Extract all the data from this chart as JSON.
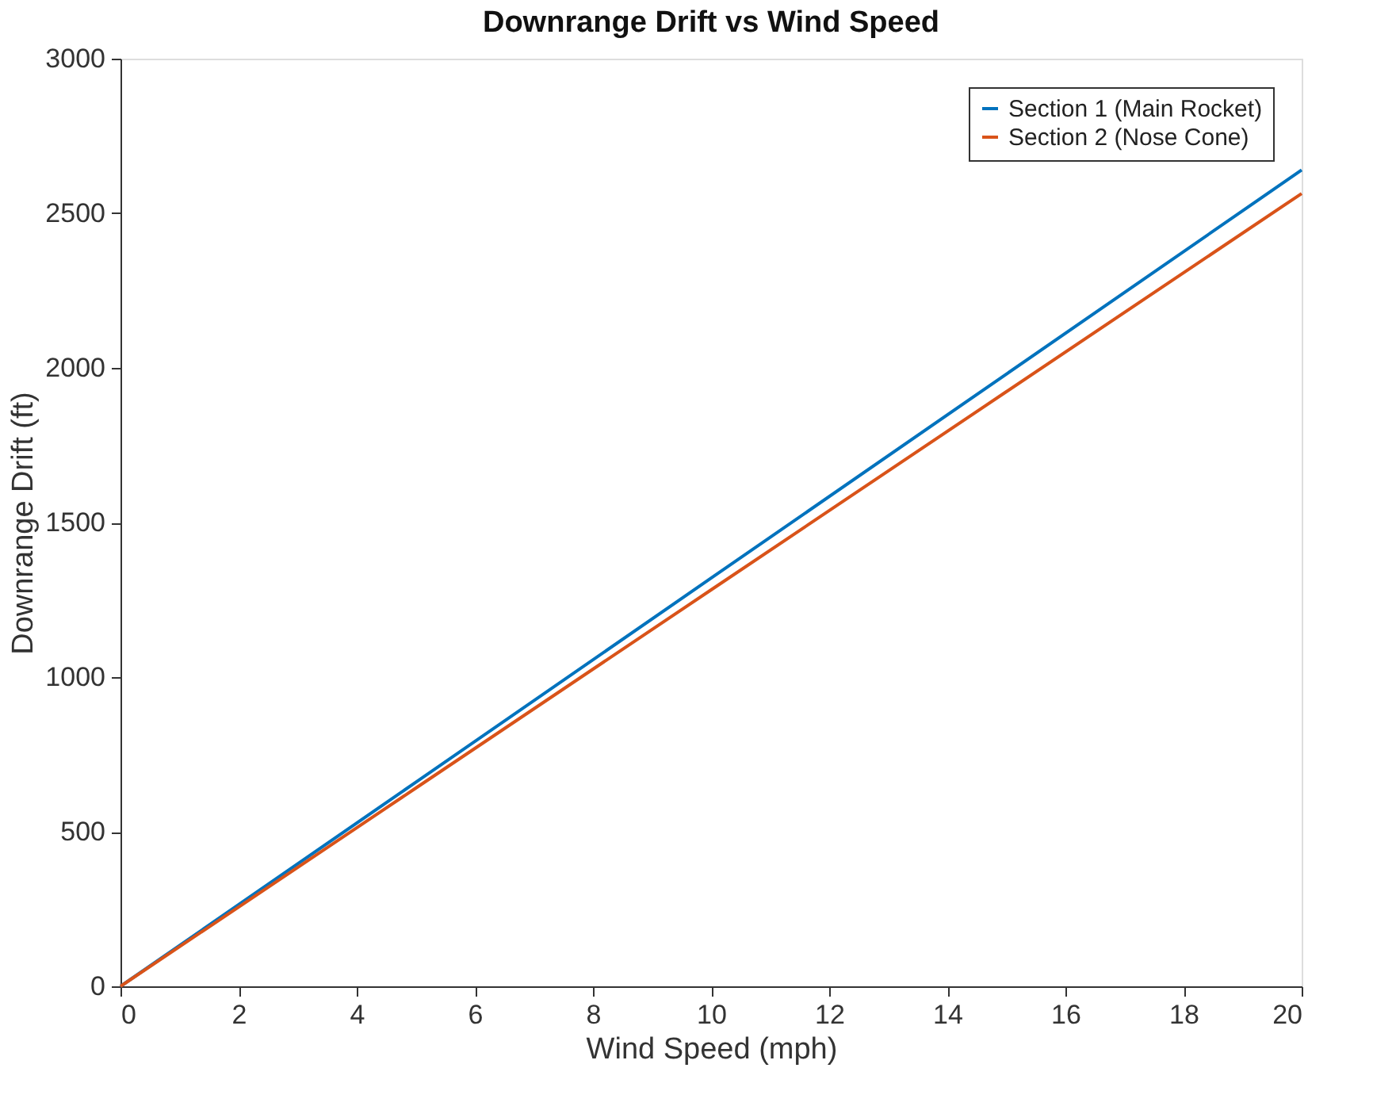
{
  "chart_data": {
    "type": "line",
    "title": "Downrange Drift vs Wind Speed",
    "xlabel": "Wind Speed (mph)",
    "ylabel": "Downrange Drift (ft)",
    "x": [
      0,
      5,
      10,
      15,
      20
    ],
    "series": [
      {
        "name": "Section 1 (Main Rocket)",
        "color": "#0072bd",
        "values": [
          0,
          660,
          1320,
          1980,
          2640
        ]
      },
      {
        "name": "Section 2 (Nose Cone)",
        "color": "#d95319",
        "values": [
          0,
          641,
          1282,
          1923,
          2564
        ]
      }
    ],
    "xlim": [
      0,
      20
    ],
    "xticks": [
      0,
      2,
      4,
      6,
      8,
      10,
      12,
      14,
      16,
      18,
      20
    ],
    "ylim": [
      0,
      3000
    ],
    "yticks": [
      0,
      500,
      1000,
      1500,
      2000,
      2500,
      3000
    ],
    "grid": false,
    "legend": "top right",
    "marker": "none",
    "line_style": "solid"
  }
}
